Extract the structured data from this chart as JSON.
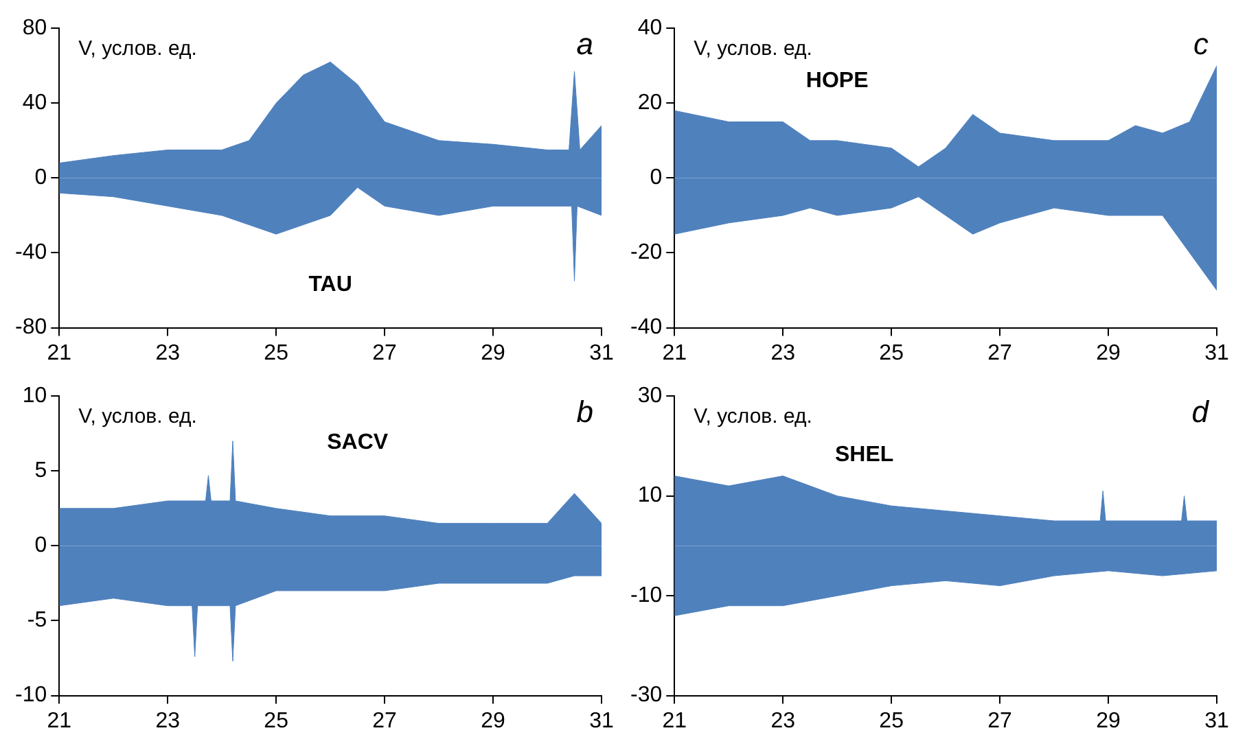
{
  "chart_data": [
    {
      "type": "area",
      "ylabel": "V, услов. ед.",
      "annotations": [
        "TAU",
        "a"
      ],
      "xlim": [
        21,
        31
      ],
      "xticks": [
        21,
        23,
        25,
        27,
        29,
        31
      ],
      "ylim": [
        -80,
        80
      ],
      "yticks": [
        -80,
        -40,
        0,
        40,
        80
      ],
      "grid": false,
      "legend": false,
      "series": [
        {
          "color": "#4f81bd",
          "x": [
            21,
            22,
            23,
            24,
            24.5,
            25,
            25.5,
            26,
            26.5,
            27,
            28,
            29,
            30,
            30.4,
            30.5,
            30.6,
            31
          ],
          "values": [
            8,
            12,
            15,
            15,
            20,
            40,
            55,
            62,
            50,
            30,
            20,
            18,
            15,
            15,
            57,
            15,
            28
          ]
        },
        {
          "color": "#4f81bd",
          "x": [
            21,
            22,
            23,
            24,
            24.5,
            25,
            25.5,
            26,
            26.5,
            27,
            28,
            29,
            30,
            30.45,
            30.5,
            30.55,
            31
          ],
          "values": [
            -8,
            -10,
            -15,
            -20,
            -25,
            -30,
            -25,
            -20,
            -5,
            -15,
            -20,
            -15,
            -15,
            -15,
            -55,
            -15,
            -20
          ]
        }
      ]
    },
    {
      "type": "area",
      "ylabel": "V, услов. ед.",
      "annotations": [
        "HOPE",
        "c"
      ],
      "xlim": [
        21,
        31
      ],
      "xticks": [
        21,
        23,
        25,
        27,
        29,
        31
      ],
      "ylim": [
        -40,
        40
      ],
      "yticks": [
        -40,
        -20,
        0,
        20,
        40
      ],
      "grid": false,
      "legend": false,
      "series": [
        {
          "color": "#4f81bd",
          "x": [
            21,
            22,
            23,
            23.5,
            24,
            25,
            25.5,
            26,
            26.5,
            27,
            28,
            29,
            29.5,
            30,
            30.5,
            31
          ],
          "values": [
            18,
            15,
            15,
            10,
            10,
            8,
            3,
            8,
            17,
            12,
            10,
            10,
            14,
            12,
            15,
            30
          ]
        },
        {
          "color": "#4f81bd",
          "x": [
            21,
            22,
            23,
            23.5,
            24,
            25,
            25.5,
            26,
            26.5,
            27,
            28,
            29,
            29.5,
            30,
            30.5,
            31
          ],
          "values": [
            -15,
            -12,
            -10,
            -8,
            -10,
            -8,
            -5,
            -10,
            -15,
            -12,
            -8,
            -10,
            -10,
            -10,
            -20,
            -30
          ]
        }
      ]
    },
    {
      "type": "area",
      "ylabel": "V, услов. ед.",
      "annotations": [
        "SACV",
        "b"
      ],
      "xlim": [
        21,
        31
      ],
      "xticks": [
        21,
        23,
        25,
        27,
        29,
        31
      ],
      "ylim": [
        -10,
        10
      ],
      "yticks": [
        -10,
        -5,
        0,
        5,
        10
      ],
      "grid": false,
      "legend": false,
      "series": [
        {
          "color": "#4f81bd",
          "x": [
            21,
            22,
            23,
            23.7,
            23.75,
            23.8,
            24.15,
            24.2,
            24.25,
            25,
            26,
            27,
            28,
            29,
            30,
            30.5,
            31
          ],
          "values": [
            2.5,
            2.5,
            3,
            3,
            4.7,
            3,
            3,
            7,
            3,
            2.5,
            2,
            2,
            1.5,
            1.5,
            1.5,
            3.5,
            1.5
          ]
        },
        {
          "color": "#4f81bd",
          "x": [
            21,
            22,
            23,
            23.45,
            23.5,
            23.55,
            24.15,
            24.2,
            24.25,
            25,
            26,
            27,
            28,
            29,
            30,
            30.5,
            31
          ],
          "values": [
            -4,
            -3.5,
            -4,
            -4,
            -7.4,
            -4,
            -4,
            -7.7,
            -4,
            -3,
            -3,
            -3,
            -2.5,
            -2.5,
            -2.5,
            -2,
            -2
          ]
        }
      ]
    },
    {
      "type": "area",
      "ylabel": "V, услов. ед.",
      "annotations": [
        "SHEL",
        "d"
      ],
      "xlim": [
        21,
        31
      ],
      "xticks": [
        21,
        23,
        25,
        27,
        29,
        31
      ],
      "ylim": [
        -30,
        30
      ],
      "yticks": [
        -30,
        -10,
        10,
        30
      ],
      "grid": false,
      "legend": false,
      "series": [
        {
          "color": "#4f81bd",
          "x": [
            21,
            22,
            23,
            24,
            25,
            26,
            27,
            28,
            28.85,
            28.9,
            28.95,
            30,
            30.35,
            30.4,
            30.45,
            31
          ],
          "values": [
            14,
            12,
            14,
            10,
            8,
            7,
            6,
            5,
            5,
            11,
            5,
            5,
            5,
            10,
            5,
            5
          ]
        },
        {
          "color": "#4f81bd",
          "x": [
            21,
            22,
            23,
            24,
            25,
            26,
            27,
            28,
            29,
            30,
            31
          ],
          "values": [
            -14,
            -12,
            -12,
            -10,
            -8,
            -7,
            -8,
            -6,
            -5,
            -6,
            -5
          ]
        }
      ]
    }
  ]
}
